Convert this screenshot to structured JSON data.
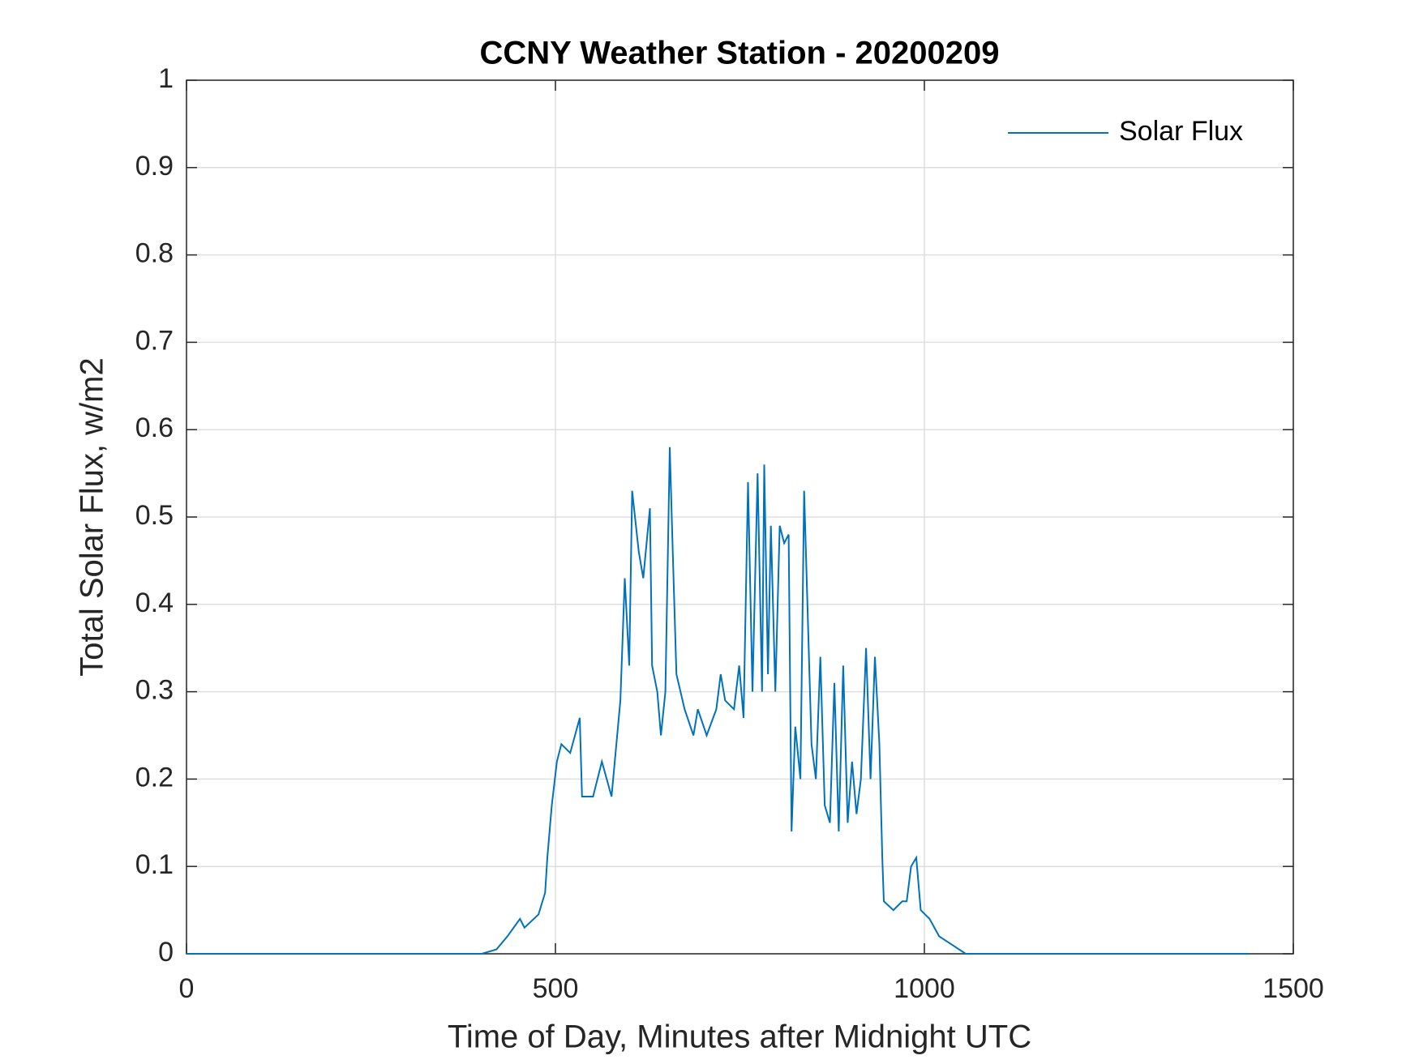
{
  "chart_data": {
    "type": "line",
    "title": "CCNY Weather Station - 20200209",
    "xlabel": "Time of Day, Minutes after Midnight UTC",
    "ylabel": "Total Solar Flux, w/m2",
    "x": [
      0,
      400,
      420,
      435,
      452,
      458,
      477,
      486,
      489,
      495,
      502,
      508,
      520,
      533,
      536,
      551,
      563,
      576,
      588,
      594,
      600,
      604,
      613,
      619,
      628,
      631,
      638,
      643,
      649,
      655,
      659,
      664,
      675,
      687,
      693,
      705,
      718,
      724,
      730,
      742,
      749,
      755,
      761,
      767,
      774,
      780,
      783,
      788,
      792,
      798,
      804,
      810,
      816,
      820,
      825,
      832,
      837,
      847,
      853,
      859,
      865,
      872,
      878,
      884,
      890,
      896,
      902,
      908,
      914,
      921,
      927,
      933,
      939,
      943,
      945,
      958,
      970,
      976,
      982,
      989,
      995,
      1007,
      1020,
      1038,
      1056,
      1440
    ],
    "series": [
      {
        "name": "Solar Flux",
        "color": "#0072bd",
        "values": [
          0,
          0,
          0.005,
          0.02,
          0.04,
          0.03,
          0.045,
          0.07,
          0.11,
          0.17,
          0.22,
          0.24,
          0.23,
          0.27,
          0.18,
          0.18,
          0.22,
          0.18,
          0.29,
          0.43,
          0.33,
          0.53,
          0.46,
          0.43,
          0.51,
          0.33,
          0.3,
          0.25,
          0.3,
          0.58,
          0.46,
          0.32,
          0.28,
          0.25,
          0.28,
          0.25,
          0.28,
          0.32,
          0.29,
          0.28,
          0.33,
          0.27,
          0.54,
          0.3,
          0.55,
          0.3,
          0.56,
          0.32,
          0.49,
          0.3,
          0.49,
          0.47,
          0.48,
          0.14,
          0.26,
          0.2,
          0.53,
          0.24,
          0.2,
          0.34,
          0.17,
          0.15,
          0.31,
          0.14,
          0.33,
          0.15,
          0.22,
          0.16,
          0.2,
          0.35,
          0.2,
          0.34,
          0.24,
          0.11,
          0.06,
          0.05,
          0.06,
          0.06,
          0.1,
          0.11,
          0.05,
          0.04,
          0.02,
          0.01,
          0,
          0
        ]
      }
    ],
    "xlim": [
      0,
      1500
    ],
    "xticks": [
      0,
      500,
      1000,
      1500
    ],
    "ylim": [
      0,
      1
    ],
    "yticks": [
      0,
      0.1,
      0.2,
      0.3,
      0.4,
      0.5,
      0.6,
      0.7,
      0.8,
      0.9,
      1
    ],
    "grid": true,
    "legend": "top-right"
  }
}
